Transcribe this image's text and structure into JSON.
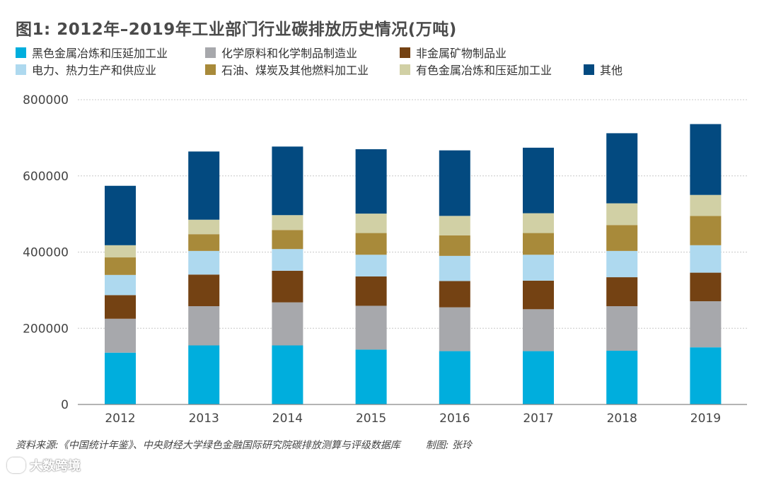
{
  "chart_data": {
    "type": "bar",
    "stacked": true,
    "title": "图1: 2012年–2019年工业部门行业碳排放历史情况(万吨)",
    "xlabel": "",
    "ylabel": "",
    "ylim": [
      0,
      800000
    ],
    "yticks": [
      "0",
      "200000",
      "400000",
      "600000",
      "800000"
    ],
    "ytick_values": [
      0,
      200000,
      400000,
      600000,
      800000
    ],
    "grid": true,
    "legend_position": "top",
    "categories": [
      "2012",
      "2013",
      "2014",
      "2015",
      "2016",
      "2017",
      "2018",
      "2019"
    ],
    "series": [
      {
        "name": "黑色金属冶炼和压延加工业",
        "color": "#00AEDD",
        "values": [
          136000,
          155000,
          155000,
          144000,
          140000,
          140000,
          141000,
          150000
        ]
      },
      {
        "name": "化学原料和化学制品制造业",
        "color": "#A7A8AC",
        "values": [
          89000,
          103000,
          113000,
          115000,
          115000,
          110000,
          117000,
          121000
        ]
      },
      {
        "name": "非金属矿物制品业",
        "color": "#744213",
        "values": [
          62000,
          83000,
          83000,
          77000,
          69000,
          75000,
          76000,
          75000
        ]
      },
      {
        "name": "电力、热力生产和供应业",
        "color": "#AED9EF",
        "values": [
          53000,
          62000,
          57000,
          57000,
          66000,
          68000,
          69000,
          72000
        ]
      },
      {
        "name": "石油、煤炭及其他燃料加工业",
        "color": "#A88A3A",
        "values": [
          46000,
          44000,
          50000,
          57000,
          54000,
          57000,
          68000,
          77000
        ]
      },
      {
        "name": "有色金属冶炼和压延加工业",
        "color": "#D1D0A5",
        "values": [
          32000,
          38000,
          39000,
          51000,
          51000,
          52000,
          57000,
          55000
        ]
      },
      {
        "name": "其他",
        "color": "#034A80",
        "values": [
          156000,
          179000,
          180000,
          169000,
          172000,
          172000,
          184000,
          186000
        ]
      }
    ]
  },
  "footer": {
    "source": "资料来源:《中国统计年鉴》、中央财经大学绿色金融国际研究院碳排放测算与评级数据库",
    "credit": "制图: 张玲"
  },
  "watermark": "大数跨境"
}
